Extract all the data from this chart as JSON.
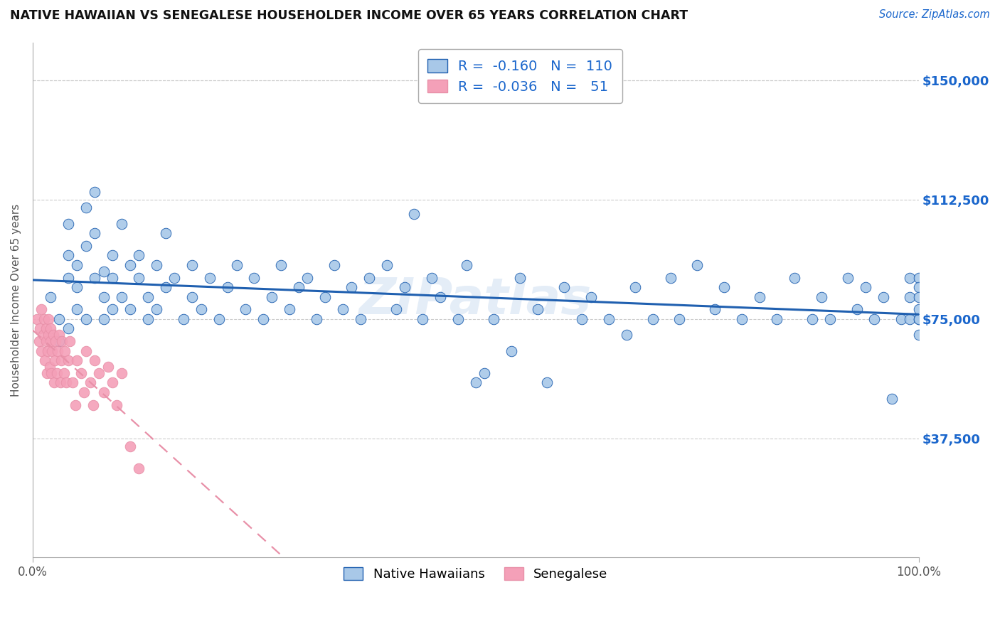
{
  "title": "NATIVE HAWAIIAN VS SENEGALESE HOUSEHOLDER INCOME OVER 65 YEARS CORRELATION CHART",
  "source": "Source: ZipAtlas.com",
  "ylabel": "Householder Income Over 65 years",
  "x_tick_labels": [
    "0.0%",
    "100.0%"
  ],
  "y_tick_labels": [
    "$37,500",
    "$75,000",
    "$112,500",
    "$150,000"
  ],
  "y_tick_values": [
    37500,
    75000,
    112500,
    150000
  ],
  "xlim": [
    0.0,
    1.0
  ],
  "ylim": [
    0,
    162000
  ],
  "hawaiian_R": "-0.160",
  "hawaiian_N": "110",
  "senegalese_R": "-0.036",
  "senegalese_N": "51",
  "hawaiian_color": "#a8c8e8",
  "senegalese_color": "#f4a0b8",
  "hawaiian_line_color": "#2060b0",
  "senegalese_line_color": "#e890a8",
  "background_color": "#ffffff",
  "hawaiian_x": [
    0.02,
    0.03,
    0.03,
    0.04,
    0.04,
    0.04,
    0.04,
    0.05,
    0.05,
    0.05,
    0.06,
    0.06,
    0.06,
    0.07,
    0.07,
    0.07,
    0.08,
    0.08,
    0.08,
    0.09,
    0.09,
    0.09,
    0.1,
    0.1,
    0.11,
    0.11,
    0.12,
    0.12,
    0.13,
    0.13,
    0.14,
    0.14,
    0.15,
    0.15,
    0.16,
    0.17,
    0.18,
    0.18,
    0.19,
    0.2,
    0.21,
    0.22,
    0.23,
    0.24,
    0.25,
    0.26,
    0.27,
    0.28,
    0.29,
    0.3,
    0.31,
    0.32,
    0.33,
    0.34,
    0.35,
    0.36,
    0.37,
    0.38,
    0.4,
    0.41,
    0.42,
    0.43,
    0.44,
    0.45,
    0.46,
    0.48,
    0.49,
    0.5,
    0.51,
    0.52,
    0.54,
    0.55,
    0.57,
    0.58,
    0.6,
    0.62,
    0.63,
    0.65,
    0.67,
    0.68,
    0.7,
    0.72,
    0.73,
    0.75,
    0.77,
    0.78,
    0.8,
    0.82,
    0.84,
    0.86,
    0.88,
    0.89,
    0.9,
    0.92,
    0.93,
    0.94,
    0.95,
    0.96,
    0.97,
    0.98,
    0.99,
    0.99,
    0.99,
    1.0,
    1.0,
    1.0,
    1.0,
    1.0,
    1.0,
    1.0
  ],
  "hawaiian_y": [
    82000,
    75000,
    68000,
    95000,
    88000,
    105000,
    72000,
    78000,
    85000,
    92000,
    110000,
    98000,
    75000,
    88000,
    102000,
    115000,
    82000,
    90000,
    75000,
    95000,
    88000,
    78000,
    105000,
    82000,
    92000,
    78000,
    88000,
    95000,
    82000,
    75000,
    92000,
    78000,
    102000,
    85000,
    88000,
    75000,
    92000,
    82000,
    78000,
    88000,
    75000,
    85000,
    92000,
    78000,
    88000,
    75000,
    82000,
    92000,
    78000,
    85000,
    88000,
    75000,
    82000,
    92000,
    78000,
    85000,
    75000,
    88000,
    92000,
    78000,
    85000,
    108000,
    75000,
    88000,
    82000,
    75000,
    92000,
    55000,
    58000,
    75000,
    65000,
    88000,
    78000,
    55000,
    85000,
    75000,
    82000,
    75000,
    70000,
    85000,
    75000,
    88000,
    75000,
    92000,
    78000,
    85000,
    75000,
    82000,
    75000,
    88000,
    75000,
    82000,
    75000,
    88000,
    78000,
    85000,
    75000,
    82000,
    50000,
    75000,
    88000,
    75000,
    82000,
    75000,
    88000,
    78000,
    85000,
    70000,
    82000,
    75000
  ],
  "senegalese_x": [
    0.005,
    0.007,
    0.008,
    0.01,
    0.01,
    0.012,
    0.013,
    0.014,
    0.015,
    0.015,
    0.016,
    0.017,
    0.018,
    0.018,
    0.019,
    0.02,
    0.02,
    0.021,
    0.022,
    0.023,
    0.024,
    0.025,
    0.026,
    0.027,
    0.028,
    0.03,
    0.031,
    0.032,
    0.033,
    0.035,
    0.036,
    0.038,
    0.04,
    0.042,
    0.045,
    0.048,
    0.05,
    0.055,
    0.058,
    0.06,
    0.065,
    0.068,
    0.07,
    0.075,
    0.08,
    0.085,
    0.09,
    0.095,
    0.1,
    0.11,
    0.12
  ],
  "senegalese_y": [
    75000,
    68000,
    72000,
    65000,
    78000,
    70000,
    75000,
    62000,
    68000,
    72000,
    58000,
    65000,
    70000,
    75000,
    60000,
    68000,
    72000,
    58000,
    65000,
    70000,
    55000,
    62000,
    68000,
    58000,
    65000,
    70000,
    55000,
    62000,
    68000,
    58000,
    65000,
    55000,
    62000,
    68000,
    55000,
    48000,
    62000,
    58000,
    52000,
    65000,
    55000,
    48000,
    62000,
    58000,
    52000,
    60000,
    55000,
    48000,
    58000,
    35000,
    28000
  ]
}
